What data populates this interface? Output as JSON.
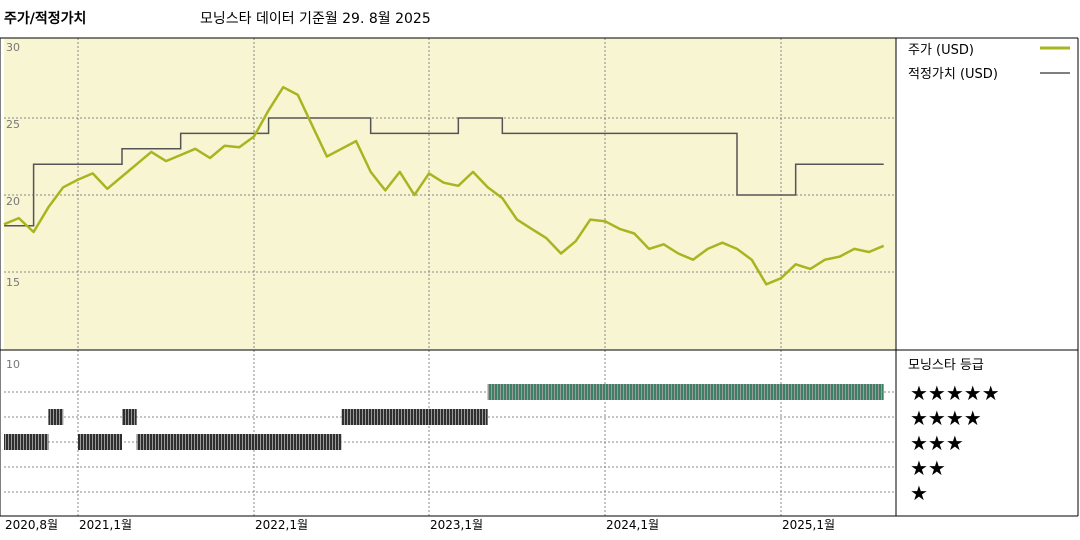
{
  "header": {
    "title": "주가/적정가치",
    "subtitle": "모닝스타 데이터 기준월 29. 8월 2025"
  },
  "colors": {
    "price_line": "#a8b521",
    "fair_value_line": "#555555",
    "top_bg": "#f8f5d2",
    "rating_5": "#3f7f66",
    "rating_other": "#2f2f2f"
  },
  "chart_data": [
    {
      "type": "line",
      "title": "주가/적정가치",
      "ylim": [
        10,
        30
      ],
      "y_ticks": [
        "30",
        "25",
        "20",
        "15"
      ],
      "x_tick_labels": [
        "2020,8월",
        "2021,1월",
        "2022,1월",
        "2023,1월",
        "2024,1월",
        "2025,1월"
      ],
      "x_range": [
        "2020-08",
        "2025-08"
      ],
      "grid": true,
      "legend_position": "right",
      "series": [
        {
          "name": "주가 (USD)",
          "points": [
            [
              "2020-08",
              18.1
            ],
            [
              "2020-09",
              18.5
            ],
            [
              "2020-10",
              17.6
            ],
            [
              "2020-11",
              19.2
            ],
            [
              "2020-12",
              20.5
            ],
            [
              "2021-01",
              21.0
            ],
            [
              "2021-02",
              21.4
            ],
            [
              "2021-03",
              20.4
            ],
            [
              "2021-04",
              21.2
            ],
            [
              "2021-05",
              22.0
            ],
            [
              "2021-06",
              22.8
            ],
            [
              "2021-07",
              22.2
            ],
            [
              "2021-08",
              22.6
            ],
            [
              "2021-09",
              23.0
            ],
            [
              "2021-10",
              22.4
            ],
            [
              "2021-11",
              23.2
            ],
            [
              "2021-12",
              23.1
            ],
            [
              "2022-01",
              23.8
            ],
            [
              "2022-02",
              25.5
            ],
            [
              "2022-03",
              27.0
            ],
            [
              "2022-04",
              26.5
            ],
            [
              "2022-05",
              24.5
            ],
            [
              "2022-06",
              22.5
            ],
            [
              "2022-07",
              23.0
            ],
            [
              "2022-08",
              23.5
            ],
            [
              "2022-09",
              21.5
            ],
            [
              "2022-10",
              20.3
            ],
            [
              "2022-11",
              21.5
            ],
            [
              "2022-12",
              20.0
            ],
            [
              "2023-01",
              21.4
            ],
            [
              "2023-02",
              20.8
            ],
            [
              "2023-03",
              20.6
            ],
            [
              "2023-04",
              21.5
            ],
            [
              "2023-05",
              20.5
            ],
            [
              "2023-06",
              19.8
            ],
            [
              "2023-07",
              18.4
            ],
            [
              "2023-08",
              17.8
            ],
            [
              "2023-09",
              17.2
            ],
            [
              "2023-10",
              16.2
            ],
            [
              "2023-11",
              17.0
            ],
            [
              "2023-12",
              18.4
            ],
            [
              "2024-01",
              18.3
            ],
            [
              "2024-02",
              17.8
            ],
            [
              "2024-03",
              17.5
            ],
            [
              "2024-04",
              16.5
            ],
            [
              "2024-05",
              16.8
            ],
            [
              "2024-06",
              16.2
            ],
            [
              "2024-07",
              15.8
            ],
            [
              "2024-08",
              16.5
            ],
            [
              "2024-09",
              16.9
            ],
            [
              "2024-10",
              16.5
            ],
            [
              "2024-11",
              15.8
            ],
            [
              "2024-12",
              14.2
            ],
            [
              "2025-01",
              14.6
            ],
            [
              "2025-02",
              15.5
            ],
            [
              "2025-03",
              15.2
            ],
            [
              "2025-04",
              15.8
            ],
            [
              "2025-05",
              16.0
            ],
            [
              "2025-06",
              16.5
            ],
            [
              "2025-07",
              16.3
            ],
            [
              "2025-08",
              16.7
            ]
          ]
        },
        {
          "name": "적정가치 (USD)",
          "steps": [
            [
              "2020-08",
              18.0
            ],
            [
              "2020-10",
              22.0
            ],
            [
              "2021-04",
              23.0
            ],
            [
              "2021-08",
              24.0
            ],
            [
              "2022-02",
              25.0
            ],
            [
              "2022-09",
              24.0
            ],
            [
              "2023-03",
              25.0
            ],
            [
              "2023-06",
              24.0
            ],
            [
              "2024-10",
              20.0
            ],
            [
              "2025-02",
              22.0
            ],
            [
              "2025-08",
              22.0
            ]
          ]
        }
      ]
    },
    {
      "type": "bar",
      "title": "모닝스타 등급",
      "y_ticks": [
        "10"
      ],
      "levels": [
        "★★★★★",
        "★★★★",
        "★★★",
        "★★",
        "★"
      ],
      "periods": [
        {
          "start": "2020-08",
          "end": "2020-11",
          "stars": 3
        },
        {
          "start": "2020-11",
          "end": "2020-12",
          "stars": 4
        },
        {
          "start": "2021-01",
          "end": "2021-04",
          "stars": 3
        },
        {
          "start": "2021-04",
          "end": "2021-05",
          "stars": 4
        },
        {
          "start": "2021-05",
          "end": "2022-07",
          "stars": 3
        },
        {
          "start": "2022-07",
          "end": "2023-05",
          "stars": 4
        },
        {
          "start": "2023-05",
          "end": "2025-08",
          "stars": 5
        }
      ]
    }
  ]
}
